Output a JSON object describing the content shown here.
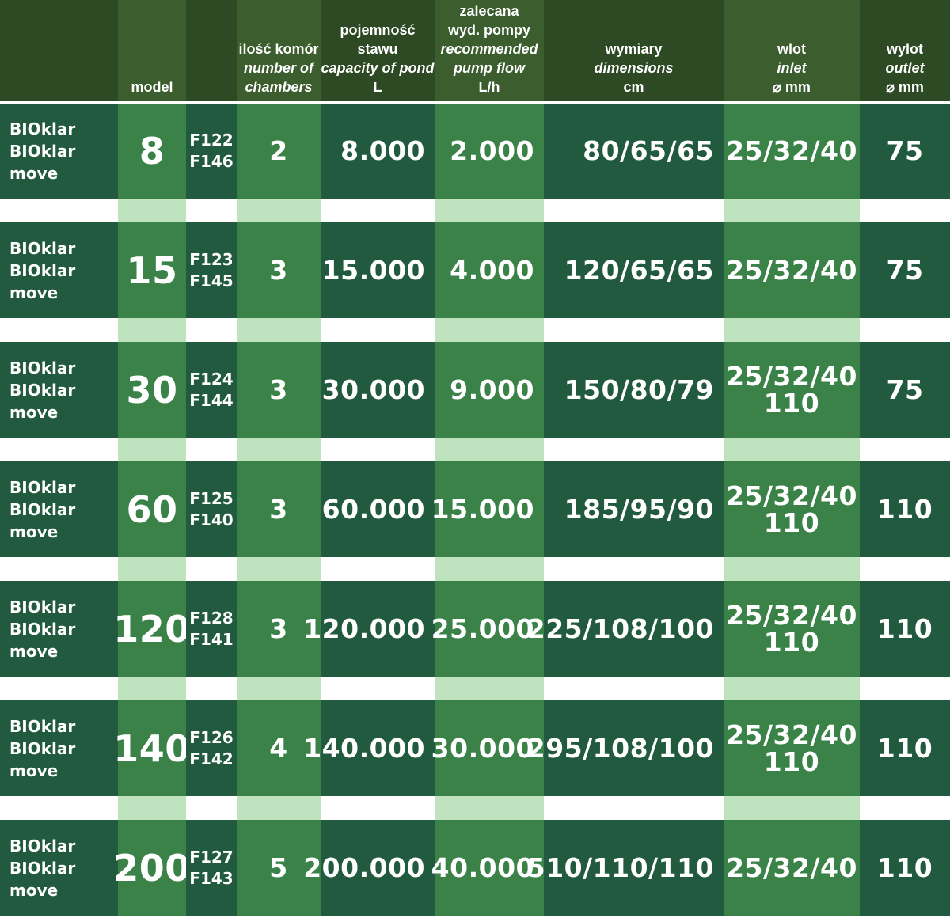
{
  "header": {
    "col_name": "",
    "col_model": "model",
    "col_code": "",
    "col_chambers": [
      "ilość komór",
      "number of",
      "chambers"
    ],
    "col_capacity": [
      "pojemność",
      "stawu",
      "capacity of pond",
      "L"
    ],
    "col_pump": [
      "zalecana",
      "wyd. pompy",
      "recommended",
      "pump flow",
      "L/h"
    ],
    "col_dimensions": [
      "wymiary",
      "dimensions",
      "cm"
    ],
    "col_inlet": [
      "wlot",
      "inlet",
      "⌀ mm"
    ],
    "col_outlet": [
      "wylot",
      "outlet",
      "⌀ mm"
    ]
  },
  "rows": [
    {
      "name1": "BIOklar",
      "name2": "BIOklar move",
      "model": "8",
      "code1": "F122",
      "code2": "F146",
      "chambers": "2",
      "capacity": "8.000",
      "pump": "2.000",
      "dimensions": "80/65/65",
      "inlet1": "25/32/40",
      "inlet2": "",
      "outlet": "75"
    },
    {
      "name1": "BIOklar",
      "name2": "BIOklar move",
      "model": "15",
      "code1": "F123",
      "code2": "F145",
      "chambers": "3",
      "capacity": "15.000",
      "pump": "4.000",
      "dimensions": "120/65/65",
      "inlet1": "25/32/40",
      "inlet2": "",
      "outlet": "75"
    },
    {
      "name1": "BIOklar",
      "name2": "BIOklar move",
      "model": "30",
      "code1": "F124",
      "code2": "F144",
      "chambers": "3",
      "capacity": "30.000",
      "pump": "9.000",
      "dimensions": "150/80/79",
      "inlet1": "25/32/40",
      "inlet2": "110",
      "outlet": "75"
    },
    {
      "name1": "BIOklar",
      "name2": "BIOklar move",
      "model": "60",
      "code1": "F125",
      "code2": "F140",
      "chambers": "3",
      "capacity": "60.000",
      "pump": "15.000",
      "dimensions": "185/95/90",
      "inlet1": "25/32/40",
      "inlet2": "110",
      "outlet": "110"
    },
    {
      "name1": "BIOklar",
      "name2": "BIOklar move",
      "model": "120",
      "code1": "F128",
      "code2": "F141",
      "chambers": "3",
      "capacity": "120.000",
      "pump": "25.000",
      "dimensions": "225/108/100",
      "inlet1": "25/32/40",
      "inlet2": "110",
      "outlet": "110"
    },
    {
      "name1": "BIOklar",
      "name2": "BIOklar move",
      "model": "140",
      "code1": "F126",
      "code2": "F142",
      "chambers": "4",
      "capacity": "140.000",
      "pump": "30.000",
      "dimensions": "295/108/100",
      "inlet1": "25/32/40",
      "inlet2": "110",
      "outlet": "110"
    },
    {
      "name1": "BIOklar",
      "name2": "BIOklar move",
      "model": "200",
      "code1": "F127",
      "code2": "F143",
      "chambers": "5",
      "capacity": "200.000",
      "pump": "40.000",
      "dimensions": "510/110/110",
      "inlet1": "25/32/40",
      "inlet2": "",
      "outlet": "110"
    }
  ],
  "colors": {
    "header_dark": "#2e4a24",
    "header_mid": "#3c5d2e",
    "cell_dark": "#215a3e",
    "cell_light": "#3a8248",
    "gap_light": "#bfe2bf"
  }
}
